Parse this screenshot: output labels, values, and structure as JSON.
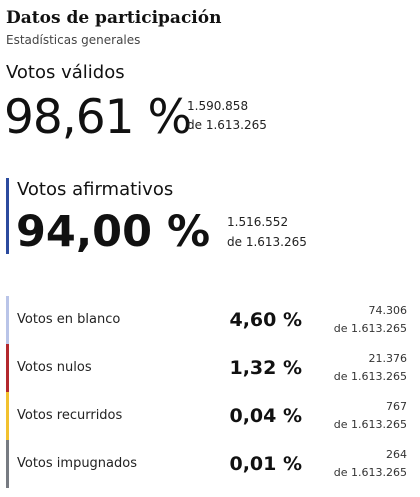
{
  "header": {
    "title": "Datos de participación",
    "subtitle": "Estadísticas generales"
  },
  "valid": {
    "label": "Votos válidos",
    "percentage": "98,61 %",
    "count": "1.590.858",
    "total": "de 1.613.265"
  },
  "affirmative": {
    "label": "Votos afirmativos",
    "percentage": "94,00 %",
    "count": "1.516.552",
    "total": "de 1.613.265",
    "accent_color": "#2b4a9e"
  },
  "rows": [
    {
      "label": "Votos en blanco",
      "percentage": "4,60 %",
      "count": "74.306",
      "total": "de 1.613.265",
      "color": "#b9c4e8"
    },
    {
      "label": "Votos nulos",
      "percentage": "1,32 %",
      "count": "21.376",
      "total": "de 1.613.265",
      "color": "#b3282d"
    },
    {
      "label": "Votos recurridos",
      "percentage": "0,04 %",
      "count": "767",
      "total": "de 1.613.265",
      "color": "#f2c12e"
    },
    {
      "label": "Votos impugnados",
      "percentage": "0,01 %",
      "count": "264",
      "total": "de 1.613.265",
      "color": "#777b82"
    }
  ]
}
